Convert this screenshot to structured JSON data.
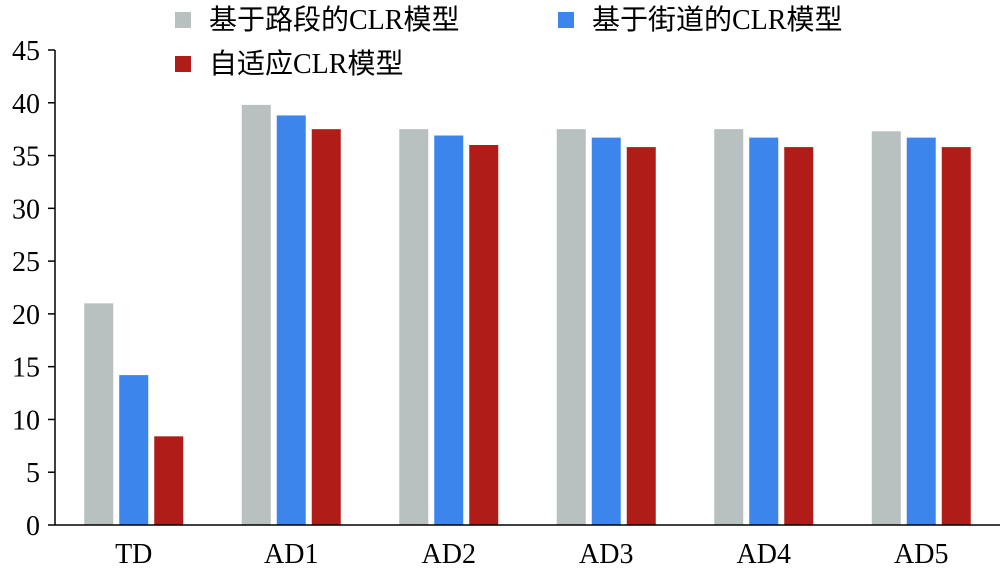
{
  "chart_data": {
    "type": "bar",
    "categories": [
      "TD",
      "AD1",
      "AD2",
      "AD3",
      "AD4",
      "AD5"
    ],
    "series": [
      {
        "name": "基于路段的CLR模型",
        "color": "#b8c0c0",
        "values": [
          21.0,
          39.8,
          37.5,
          37.5,
          37.5,
          37.3
        ]
      },
      {
        "name": "基于街道的CLR模型",
        "color": "#3b85ec",
        "values": [
          14.2,
          38.8,
          36.9,
          36.7,
          36.7,
          36.7
        ]
      },
      {
        "name": "自适应CLR模型",
        "color": "#b01c17",
        "values": [
          8.4,
          37.5,
          36.0,
          35.8,
          35.8,
          35.8
        ]
      }
    ],
    "ylim": [
      0,
      45
    ],
    "yticks": [
      0,
      5,
      10,
      15,
      20,
      25,
      30,
      35,
      40,
      45
    ],
    "grid": false,
    "legend_position": "top"
  }
}
